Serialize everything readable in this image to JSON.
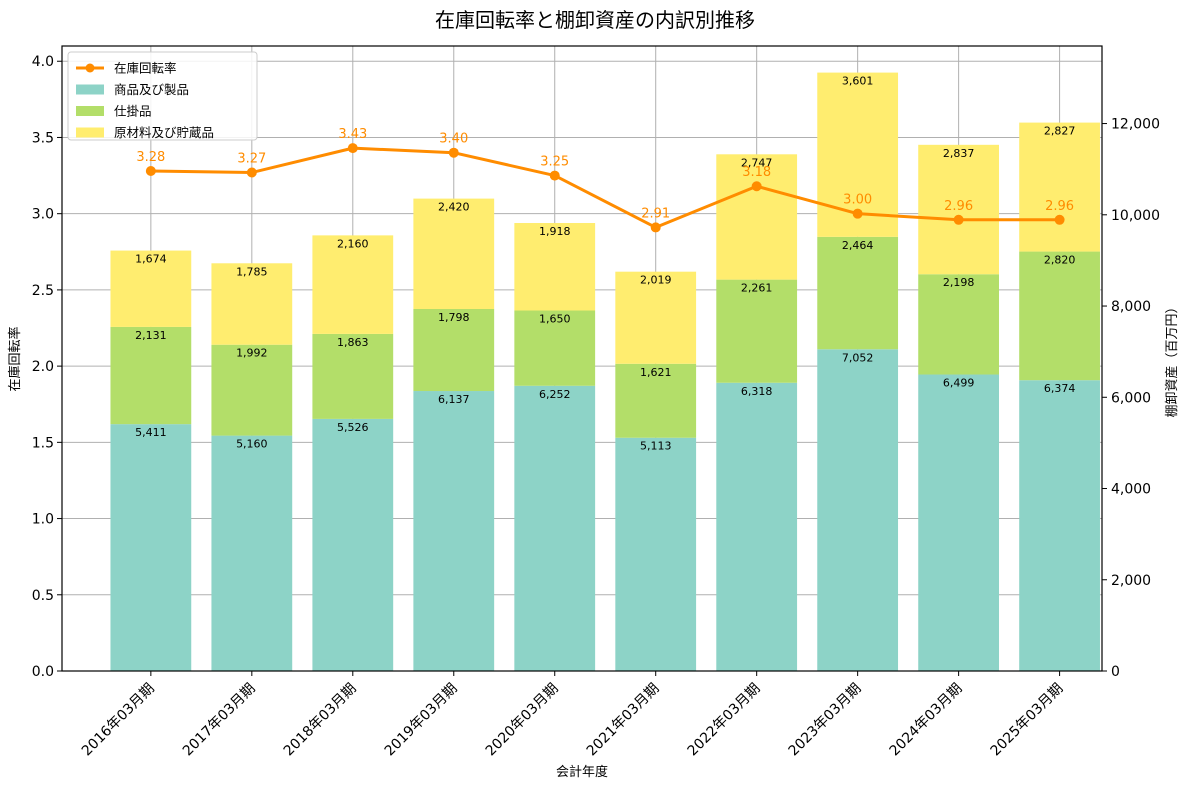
{
  "chart_data": {
    "type": "bar",
    "title": "在庫回転率と棚卸資産の内訳別推移",
    "xlabel": "会計年度",
    "ylabel_left": "在庫回転率",
    "ylabel_right": "棚卸資産（百万円）",
    "ylim_left": [
      0,
      4.1
    ],
    "ylim_right": [
      0,
      13700
    ],
    "yticks_left": [
      "0.0",
      "0.5",
      "1.0",
      "1.5",
      "2.0",
      "2.5",
      "3.0",
      "3.5",
      "4.0"
    ],
    "yticks_right": [
      "0",
      "2,000",
      "4,000",
      "6,000",
      "8,000",
      "10,000",
      "12,000"
    ],
    "grid": true,
    "legend_position": "top-left",
    "categories": [
      "2016年03月期",
      "2017年03月期",
      "2018年03月期",
      "2019年03月期",
      "2020年03月期",
      "2021年03月期",
      "2022年03月期",
      "2023年03月期",
      "2024年03月期",
      "2025年03月期"
    ],
    "series": [
      {
        "name": "商品及び製品",
        "type": "bar",
        "axis": "right",
        "color": "#8dd3c7",
        "values": [
          5411,
          5160,
          5526,
          6137,
          6252,
          5113,
          6318,
          7052,
          6499,
          6374
        ],
        "labels": [
          "5,411",
          "5,160",
          "5,526",
          "6,137",
          "6,252",
          "5,113",
          "6,318",
          "7,052",
          "6,499",
          "6,374"
        ]
      },
      {
        "name": "仕掛品",
        "type": "bar",
        "axis": "right",
        "color": "#b3de69",
        "values": [
          2131,
          1992,
          1863,
          1798,
          1650,
          1621,
          2261,
          2464,
          2198,
          2820
        ],
        "labels": [
          "2,131",
          "1,992",
          "1,863",
          "1,798",
          "1,650",
          "1,621",
          "2,261",
          "2,464",
          "2,198",
          "2,820"
        ]
      },
      {
        "name": "原材料及び貯蔵品",
        "type": "bar",
        "axis": "right",
        "color": "#ffed6f",
        "values": [
          1674,
          1785,
          2160,
          2420,
          1918,
          2019,
          2747,
          3601,
          2837,
          2827
        ],
        "labels": [
          "1,674",
          "1,785",
          "2,160",
          "2,420",
          "1,918",
          "2,019",
          "2,747",
          "3,601",
          "2,837",
          "2,827"
        ]
      },
      {
        "name": "在庫回転率",
        "type": "line",
        "axis": "left",
        "color": "#ff8c00",
        "values": [
          3.28,
          3.27,
          3.43,
          3.4,
          3.25,
          2.91,
          3.18,
          3.0,
          2.96,
          2.96
        ],
        "labels": [
          "3.28",
          "3.27",
          "3.43",
          "3.40",
          "3.25",
          "2.91",
          "3.18",
          "3.00",
          "2.96",
          "2.96"
        ]
      }
    ]
  }
}
